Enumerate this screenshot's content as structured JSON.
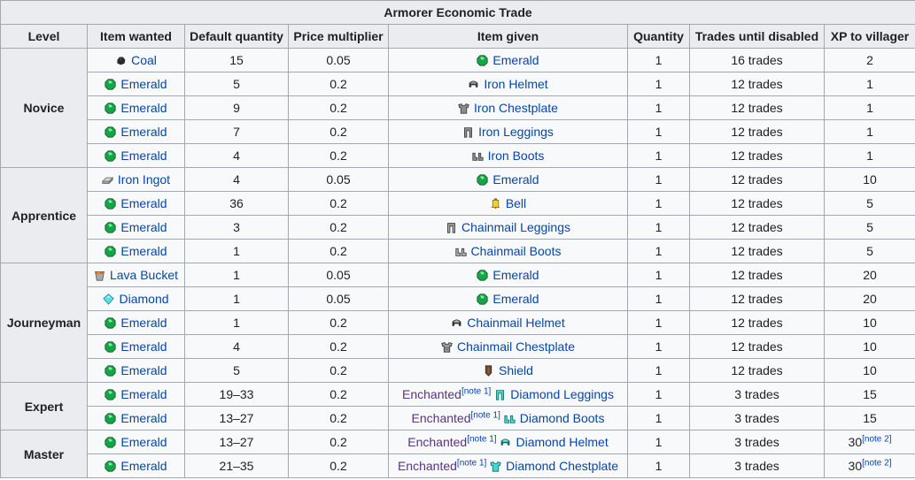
{
  "table": {
    "caption": "Armorer Economic Trade",
    "headers": [
      "Level",
      "Item wanted",
      "Default quantity",
      "Price multiplier",
      "Item given",
      "Quantity",
      "Trades until disabled",
      "XP to villager"
    ],
    "levels": [
      "Novice",
      "Apprentice",
      "Journeyman",
      "Expert",
      "Master"
    ],
    "rows": [
      {
        "wanted": "Coal",
        "wanted_icon": "coal-icon",
        "default_qty": "15",
        "multiplier": "0.05",
        "enchanted": "",
        "note": "",
        "given": "Emerald",
        "given_icon": "emerald-icon",
        "qty": "1",
        "trades": "16 trades",
        "xp": "2",
        "xp_note": ""
      },
      {
        "wanted": "Emerald",
        "wanted_icon": "emerald-icon",
        "default_qty": "5",
        "multiplier": "0.2",
        "enchanted": "",
        "note": "",
        "given": "Iron Helmet",
        "given_icon": "iron-helmet-icon",
        "qty": "1",
        "trades": "12 trades",
        "xp": "1",
        "xp_note": ""
      },
      {
        "wanted": "Emerald",
        "wanted_icon": "emerald-icon",
        "default_qty": "9",
        "multiplier": "0.2",
        "enchanted": "",
        "note": "",
        "given": "Iron Chestplate",
        "given_icon": "iron-chestplate-icon",
        "qty": "1",
        "trades": "12 trades",
        "xp": "1",
        "xp_note": ""
      },
      {
        "wanted": "Emerald",
        "wanted_icon": "emerald-icon",
        "default_qty": "7",
        "multiplier": "0.2",
        "enchanted": "",
        "note": "",
        "given": "Iron Leggings",
        "given_icon": "iron-leggings-icon",
        "qty": "1",
        "trades": "12 trades",
        "xp": "1",
        "xp_note": ""
      },
      {
        "wanted": "Emerald",
        "wanted_icon": "emerald-icon",
        "default_qty": "4",
        "multiplier": "0.2",
        "enchanted": "",
        "note": "",
        "given": "Iron Boots",
        "given_icon": "iron-boots-icon",
        "qty": "1",
        "trades": "12 trades",
        "xp": "1",
        "xp_note": ""
      },
      {
        "wanted": "Iron Ingot",
        "wanted_icon": "iron-ingot-icon",
        "default_qty": "4",
        "multiplier": "0.05",
        "enchanted": "",
        "note": "",
        "given": "Emerald",
        "given_icon": "emerald-icon",
        "qty": "1",
        "trades": "12 trades",
        "xp": "10",
        "xp_note": ""
      },
      {
        "wanted": "Emerald",
        "wanted_icon": "emerald-icon",
        "default_qty": "36",
        "multiplier": "0.2",
        "enchanted": "",
        "note": "",
        "given": "Bell",
        "given_icon": "bell-icon",
        "qty": "1",
        "trades": "12 trades",
        "xp": "5",
        "xp_note": ""
      },
      {
        "wanted": "Emerald",
        "wanted_icon": "emerald-icon",
        "default_qty": "3",
        "multiplier": "0.2",
        "enchanted": "",
        "note": "",
        "given": "Chainmail Leggings",
        "given_icon": "chainmail-leggings-icon",
        "qty": "1",
        "trades": "12 trades",
        "xp": "5",
        "xp_note": ""
      },
      {
        "wanted": "Emerald",
        "wanted_icon": "emerald-icon",
        "default_qty": "1",
        "multiplier": "0.2",
        "enchanted": "",
        "note": "",
        "given": "Chainmail Boots",
        "given_icon": "chainmail-boots-icon",
        "qty": "1",
        "trades": "12 trades",
        "xp": "5",
        "xp_note": ""
      },
      {
        "wanted": "Lava Bucket",
        "wanted_icon": "lava-bucket-icon",
        "default_qty": "1",
        "multiplier": "0.05",
        "enchanted": "",
        "note": "",
        "given": "Emerald",
        "given_icon": "emerald-icon",
        "qty": "1",
        "trades": "12 trades",
        "xp": "20",
        "xp_note": ""
      },
      {
        "wanted": "Diamond",
        "wanted_icon": "diamond-icon",
        "default_qty": "1",
        "multiplier": "0.05",
        "enchanted": "",
        "note": "",
        "given": "Emerald",
        "given_icon": "emerald-icon",
        "qty": "1",
        "trades": "12 trades",
        "xp": "20",
        "xp_note": ""
      },
      {
        "wanted": "Emerald",
        "wanted_icon": "emerald-icon",
        "default_qty": "1",
        "multiplier": "0.2",
        "enchanted": "",
        "note": "",
        "given": "Chainmail Helmet",
        "given_icon": "chainmail-helmet-icon",
        "qty": "1",
        "trades": "12 trades",
        "xp": "10",
        "xp_note": ""
      },
      {
        "wanted": "Emerald",
        "wanted_icon": "emerald-icon",
        "default_qty": "4",
        "multiplier": "0.2",
        "enchanted": "",
        "note": "",
        "given": "Chainmail Chestplate",
        "given_icon": "chainmail-chestplate-icon",
        "qty": "1",
        "trades": "12 trades",
        "xp": "10",
        "xp_note": ""
      },
      {
        "wanted": "Emerald",
        "wanted_icon": "emerald-icon",
        "default_qty": "5",
        "multiplier": "0.2",
        "enchanted": "",
        "note": "",
        "given": "Shield",
        "given_icon": "shield-icon",
        "qty": "1",
        "trades": "12 trades",
        "xp": "10",
        "xp_note": ""
      },
      {
        "wanted": "Emerald",
        "wanted_icon": "emerald-icon",
        "default_qty": "19–33",
        "multiplier": "0.2",
        "enchanted": "Enchanted",
        "note": "[note 1]",
        "given": "Diamond Leggings",
        "given_icon": "diamond-leggings-icon",
        "qty": "1",
        "trades": "3 trades",
        "xp": "15",
        "xp_note": ""
      },
      {
        "wanted": "Emerald",
        "wanted_icon": "emerald-icon",
        "default_qty": "13–27",
        "multiplier": "0.2",
        "enchanted": "Enchanted",
        "note": "[note 1]",
        "given": "Diamond Boots",
        "given_icon": "diamond-boots-icon",
        "qty": "1",
        "trades": "3 trades",
        "xp": "15",
        "xp_note": ""
      },
      {
        "wanted": "Emerald",
        "wanted_icon": "emerald-icon",
        "default_qty": "13–27",
        "multiplier": "0.2",
        "enchanted": "Enchanted",
        "note": "[note 1]",
        "given": "Diamond Helmet",
        "given_icon": "diamond-helmet-icon",
        "qty": "1",
        "trades": "3 trades",
        "xp": "30",
        "xp_note": "[note 2]"
      },
      {
        "wanted": "Emerald",
        "wanted_icon": "emerald-icon",
        "default_qty": "21–35",
        "multiplier": "0.2",
        "enchanted": "Enchanted",
        "note": "[note 1]",
        "given": "Diamond Chestplate",
        "given_icon": "diamond-chestplate-icon",
        "qty": "1",
        "trades": "3 trades",
        "xp": "30",
        "xp_note": "[note 2]"
      }
    ]
  },
  "colors": {
    "link": "#0645ad",
    "enchanted": "#5a3286",
    "header_bg": "#eaecf0",
    "cell_bg": "#f8f9fa",
    "border": "#a2a9b1"
  }
}
